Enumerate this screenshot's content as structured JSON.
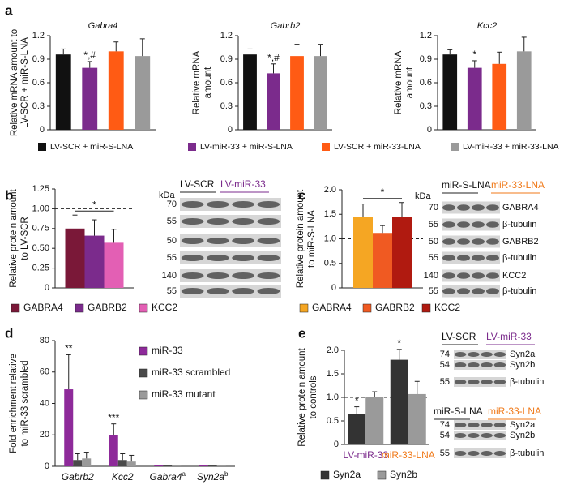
{
  "panel_labels": [
    "a",
    "b",
    "c",
    "d",
    "e"
  ],
  "shared_legend": [
    {
      "name": "LV-SCR + miR-S-LNA",
      "color": "#111111"
    },
    {
      "name": "LV-miR-33 + miR-S-LNA",
      "color": "#7b2b8c"
    },
    {
      "name": "LV-SCR + miR-33-LNA",
      "color": "#ff5b14"
    },
    {
      "name": "LV-miR-33 + miR-33-LNA",
      "color": "#9a9a9a"
    }
  ],
  "chart_data": [
    {
      "type": "bar",
      "title": "Gabra4",
      "ylabel": [
        "Relative mRNA amount to",
        "LV-SCR + miR-S-LNA"
      ],
      "values": [
        0.96,
        0.79,
        1.0,
        0.94
      ],
      "errors": [
        0.07,
        0.08,
        0.12,
        0.22
      ],
      "value_annotations": [
        null,
        "*,#",
        null,
        null
      ],
      "ylim": [
        0,
        1.2
      ],
      "yticks": [
        0,
        0.3,
        0.6,
        0.9,
        1.2
      ]
    },
    {
      "type": "bar",
      "title": "Gabrb2",
      "ylabel": [
        "Relative mRNA",
        "amount"
      ],
      "values": [
        0.96,
        0.72,
        0.94,
        0.94
      ],
      "errors": [
        0.07,
        0.12,
        0.15,
        0.15
      ],
      "value_annotations": [
        null,
        "*,#",
        null,
        null
      ],
      "ylim": [
        0,
        1.2
      ],
      "yticks": [
        0,
        0.3,
        0.6,
        0.9,
        1.2
      ]
    },
    {
      "type": "bar",
      "title": "Kcc2",
      "ylabel": [
        "Relative mRNA",
        "amount"
      ],
      "values": [
        0.96,
        0.79,
        0.84,
        1.0
      ],
      "errors": [
        0.06,
        0.09,
        0.15,
        0.18
      ],
      "value_annotations": [
        null,
        "*",
        null,
        null
      ],
      "ylim": [
        0,
        1.2
      ],
      "yticks": [
        0,
        0.3,
        0.6,
        0.9,
        1.2
      ]
    },
    {
      "type": "grouped_bar",
      "ylabel": [
        "Relative protein amount",
        "to LV-SCR"
      ],
      "series": [
        {
          "name": "GABRA4",
          "color": "#7a1838",
          "values": [
            0.75
          ],
          "errors": [
            0.17
          ]
        },
        {
          "name": "GABRB2",
          "color": "#7b2b8c",
          "values": [
            0.66
          ],
          "errors": [
            0.2
          ]
        },
        {
          "name": "KCC2",
          "color": "#e35fb4",
          "values": [
            0.57
          ],
          "errors": [
            0.17
          ]
        }
      ],
      "bracket_label": "*",
      "reference_line": 1,
      "ylim": [
        0,
        1.25
      ],
      "yticks": [
        0,
        0.25,
        {
          "value": 0.5,
          "label": "0.50"
        },
        0.75,
        {
          "value": 1,
          "label": "1.00"
        },
        1.25
      ]
    },
    {
      "type": "grouped_bar",
      "ylabel": [
        "Relative protein amount",
        "to miR-S-LNA"
      ],
      "series": [
        {
          "name": "GABRA4",
          "color": "#f5a623",
          "values": [
            1.44
          ],
          "errors": [
            0.27
          ]
        },
        {
          "name": "GABRB2",
          "color": "#f05a22",
          "values": [
            1.12
          ],
          "errors": [
            0.15
          ]
        },
        {
          "name": "KCC2",
          "color": "#b01a10",
          "values": [
            1.44
          ],
          "errors": [
            0.3
          ]
        }
      ],
      "bracket_label": "*",
      "reference_line": 1,
      "ylim": [
        0,
        2.0
      ],
      "yticks": [
        0,
        0.5,
        {
          "value": 1,
          "label": "1.0"
        },
        1.5,
        {
          "value": 2,
          "label": "2.0"
        }
      ]
    },
    {
      "type": "grouped_bar",
      "ylabel": [
        "Fold enrichment relative",
        "to miR-33 scrambled"
      ],
      "categories": [
        "Gabrb2",
        "Kcc2",
        "Gabra4",
        "Syn2a"
      ],
      "category_superscripts": [
        null,
        null,
        "a",
        "b"
      ],
      "series": [
        {
          "name": "miR-33",
          "color": "#8e2a9a",
          "values": [
            49,
            20,
            1,
            1
          ],
          "errors": [
            22,
            7,
            null,
            null
          ],
          "annotations": [
            "**",
            "***",
            null,
            null
          ]
        },
        {
          "name": "miR-33 scrambled",
          "color": "#4a4a4a",
          "values": [
            4,
            4,
            1,
            1
          ],
          "errors": [
            4,
            4,
            null,
            null
          ]
        },
        {
          "name": "miR-33 mutant",
          "color": "#9a9a9a",
          "values": [
            5,
            3,
            1,
            1
          ],
          "errors": [
            4,
            4,
            null,
            null
          ]
        }
      ],
      "ylim": [
        0,
        80
      ],
      "yticks": [
        0,
        20,
        40,
        60,
        80
      ]
    },
    {
      "type": "grouped_bar",
      "ylabel": [
        "Relative protein amount",
        "to controls"
      ],
      "categories": [
        "LV-miR-33",
        "miR-33-LNA"
      ],
      "category_colors": [
        "#7b2b8c",
        "#f07a1a"
      ],
      "series": [
        {
          "name": "Syn2a",
          "color": "#333333",
          "values": [
            0.65,
            1.8
          ],
          "errors": [
            0.15,
            0.22
          ],
          "annotations": [
            "*",
            "*"
          ]
        },
        {
          "name": "Syn2b",
          "color": "#9a9a9a",
          "values": [
            1.0,
            1.07
          ],
          "errors": [
            0.12,
            0.27
          ]
        }
      ],
      "reference_line": 1,
      "ylim": [
        0,
        2.0
      ],
      "yticks": [
        0,
        0.5,
        {
          "value": 1,
          "label": "1.0"
        },
        1.5,
        {
          "value": 2,
          "label": "2.0"
        }
      ]
    }
  ],
  "blots": [
    {
      "headers": [
        "LV-SCR",
        "LV-miR-33"
      ],
      "unit": "kDa",
      "markers": [
        70,
        55,
        50,
        55,
        140,
        55
      ]
    },
    {
      "headers": [
        "miR-S-LNA",
        "miR-33-LNA"
      ],
      "unit": "kDa",
      "markers": [
        70,
        55,
        50,
        55,
        140,
        55
      ],
      "proteins": [
        "GABRA4",
        "β-tubulin",
        "GABRB2",
        "β-tubulin",
        "KCC2",
        "β-tubulin"
      ]
    },
    {
      "headers": [
        "LV-SCR",
        "LV-miR-33"
      ],
      "markers": [
        74,
        54,
        55
      ],
      "proteins": [
        "Syn2a",
        "Syn2b",
        "β-tubulin"
      ]
    },
    {
      "headers": [
        "miR-S-LNA",
        "miR-33-LNA"
      ],
      "markers": [
        74,
        54,
        55
      ],
      "proteins": [
        "Syn2a",
        "Syn2b",
        "β-tubulin"
      ]
    }
  ]
}
